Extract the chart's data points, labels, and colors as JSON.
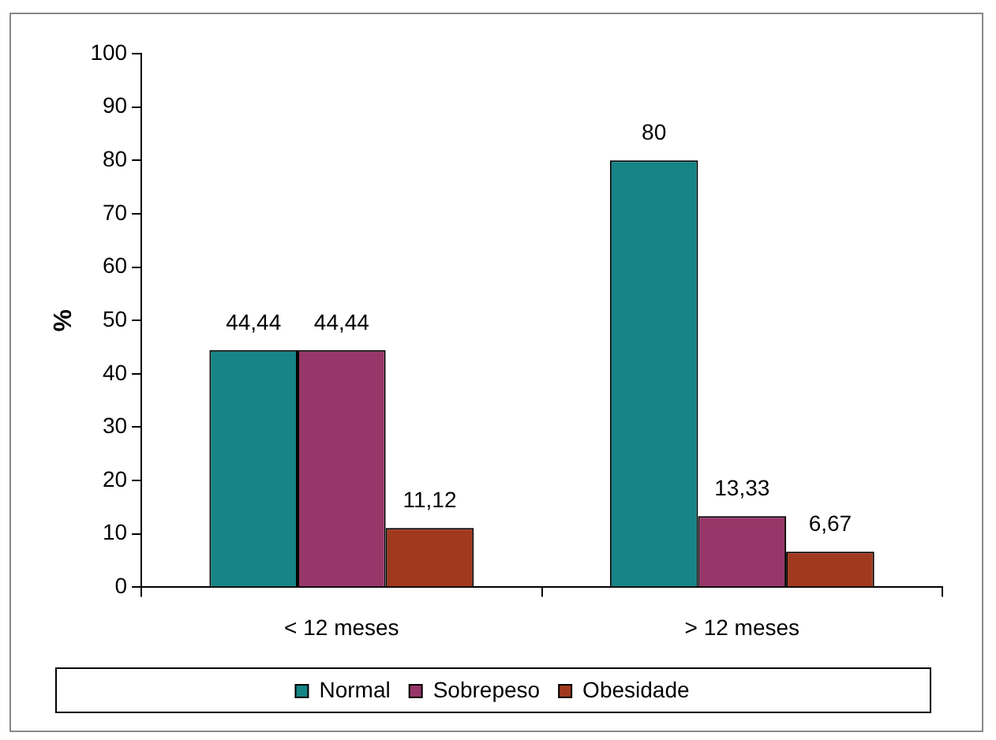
{
  "chart_data": {
    "type": "bar",
    "ylabel": "%",
    "categories": [
      "< 12 meses",
      "> 12 meses"
    ],
    "series": [
      {
        "name": "Normal",
        "color": "#178485",
        "values": [
          44.44,
          80
        ],
        "value_labels": [
          "44,44",
          "80"
        ]
      },
      {
        "name": "Sobrepeso",
        "color": "#973769",
        "values": [
          44.44,
          13.33
        ],
        "value_labels": [
          "44,44",
          "13,33"
        ]
      },
      {
        "name": "Obesidade",
        "color": "#a0391e",
        "values": [
          11.12,
          6.67
        ],
        "value_labels": [
          "11,12",
          "6,67"
        ]
      }
    ],
    "ylim": [
      0,
      100
    ],
    "yticks": [
      0,
      10,
      20,
      30,
      40,
      50,
      60,
      70,
      80,
      90,
      100
    ],
    "grid": false,
    "legend": "bottom"
  }
}
